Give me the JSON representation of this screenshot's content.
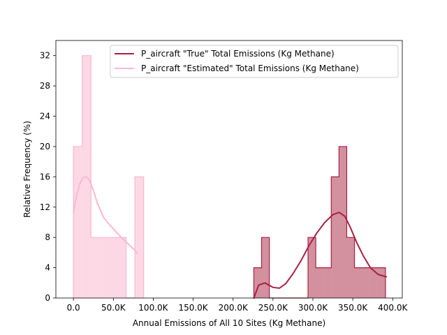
{
  "chart_data": {
    "type": "bar",
    "title": "",
    "xlabel": "Annual Emissions of All 10 Sites (Kg Methane)",
    "ylabel": "Relative Frequency (%)",
    "xlim": [
      -22000,
      412000
    ],
    "ylim": [
      0,
      34
    ],
    "x_ticks": [
      0,
      50000,
      100000,
      150000,
      200000,
      250000,
      300000,
      350000,
      400000
    ],
    "x_tick_labels": [
      "0.0",
      "50.0K",
      "100.0K",
      "150.0K",
      "200.0K",
      "250.0K",
      "300.0K",
      "350.0K",
      "400.0K"
    ],
    "y_ticks": [
      0,
      4,
      8,
      12,
      16,
      20,
      24,
      28,
      32
    ],
    "y_tick_labels": [
      "0",
      "4",
      "8",
      "12",
      "16",
      "20",
      "24",
      "28",
      "32"
    ],
    "grid": false,
    "legend_position": "top-right",
    "series": [
      {
        "name": "P_aircraft \"True\" Total Emissions (Kg Methane)",
        "color": "#a8213f",
        "histogram": {
          "bin_start": 226000,
          "bin_width": 9700,
          "frequencies": [
            4,
            8,
            0,
            0,
            0,
            0,
            0,
            8,
            4,
            4,
            16,
            20,
            8,
            4,
            4,
            4,
            4
          ]
        },
        "kde": {
          "x": [
            226000,
            232000,
            240000,
            250000,
            258000,
            266000,
            275000,
            285000,
            295000,
            305000,
            315000,
            325000,
            333000,
            340000,
            347000,
            355000,
            363000,
            372000,
            382000,
            392000
          ],
          "y": [
            0,
            1.7,
            2.0,
            1.4,
            1.3,
            1.9,
            3.2,
            4.9,
            6.9,
            8.6,
            10.0,
            11.0,
            11.3,
            10.8,
            9.3,
            7.3,
            5.6,
            4.0,
            3.1,
            2.8
          ]
        }
      },
      {
        "name": "P_aircraft \"Estimated\" Total Emissions (Kg Methane)",
        "color": "#f9b8d0",
        "histogram": {
          "bin_start": 0,
          "bin_width": 11000,
          "frequencies": [
            20,
            32,
            8,
            8,
            8,
            8,
            0,
            16
          ]
        },
        "kde": {
          "x": [
            0,
            4000,
            8000,
            12000,
            16000,
            20000,
            25000,
            30000,
            38000,
            45000,
            52000,
            60000,
            68000,
            76000,
            80000
          ],
          "y": [
            11.3,
            13.6,
            15.1,
            15.9,
            16.0,
            15.6,
            14.2,
            12.5,
            10.6,
            9.7,
            8.9,
            8.0,
            7.2,
            6.4,
            5.9
          ]
        }
      }
    ]
  }
}
